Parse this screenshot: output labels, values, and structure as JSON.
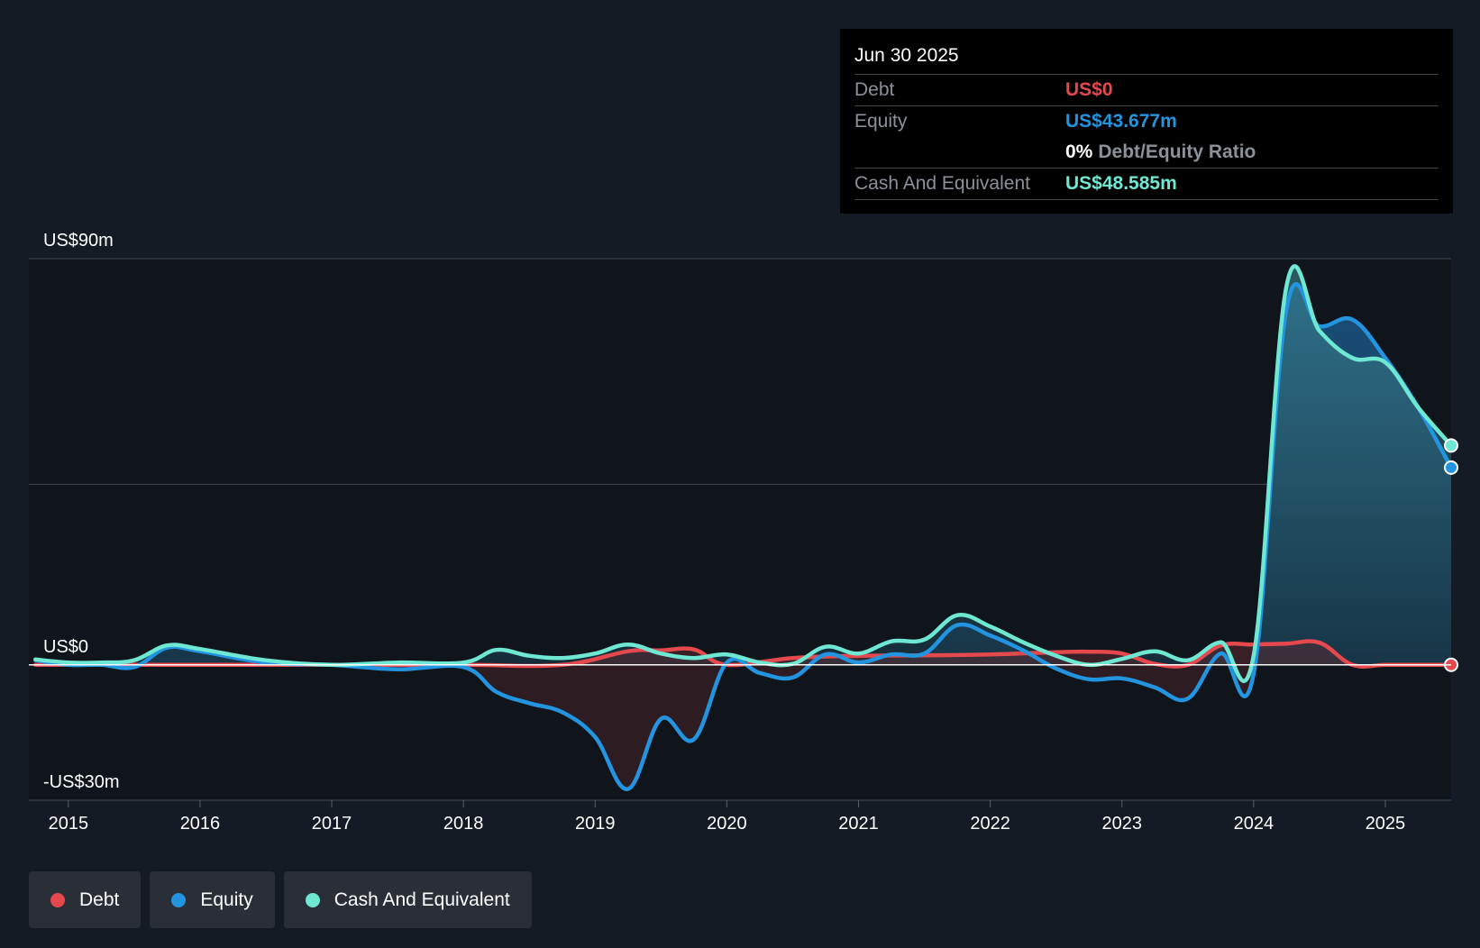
{
  "tooltip": {
    "date": "Jun 30 2025",
    "debt_label": "Debt",
    "debt_value": "US$0",
    "equity_label": "Equity",
    "equity_value": "US$43.677m",
    "ratio_pct": "0%",
    "ratio_label": "Debt/Equity Ratio",
    "cash_label": "Cash And Equivalent",
    "cash_value": "US$48.585m"
  },
  "legend": [
    {
      "label": "Debt",
      "color": "#e5484d"
    },
    {
      "label": "Equity",
      "color": "#2394df"
    },
    {
      "label": "Cash And Equivalent",
      "color": "#6ee7d3"
    }
  ],
  "colors": {
    "debt": "#e5484d",
    "equity": "#2394df",
    "cash": "#6ee7d3",
    "background": "#151b24",
    "plot_area": "#10151c"
  },
  "chart_data": {
    "type": "line",
    "title": "",
    "xlabel": "",
    "ylabel": "",
    "ylim": [
      -30,
      90
    ],
    "xlim": [
      2014.7,
      2025.5
    ],
    "y_tick_labels": [
      {
        "value": 90,
        "label": "US$90m"
      },
      {
        "value": 0,
        "label": "US$0"
      },
      {
        "value": -30,
        "label": "-US$30m"
      }
    ],
    "x_tick_labels": [
      "2015",
      "2016",
      "2017",
      "2018",
      "2019",
      "2020",
      "2021",
      "2022",
      "2023",
      "2024",
      "2025"
    ],
    "x_tick_values": [
      2015,
      2016,
      2017,
      2018,
      2019,
      2020,
      2021,
      2022,
      2023,
      2024,
      2025
    ],
    "series": [
      {
        "name": "Debt",
        "x": [
          2014.75,
          2015.5,
          2016.0,
          2017.0,
          2018.0,
          2018.75,
          2019.25,
          2019.5,
          2019.75,
          2020.0,
          2020.5,
          2021.0,
          2021.5,
          2022.0,
          2022.5,
          2022.75,
          2023.0,
          2023.25,
          2023.5,
          2023.75,
          2024.0,
          2024.25,
          2024.5,
          2024.75,
          2025.0,
          2025.25,
          2025.5
        ],
        "values": [
          0,
          0,
          0,
          0,
          0,
          0,
          3,
          3.2,
          3.4,
          0,
          1.5,
          2,
          2.1,
          2.3,
          2.8,
          2.9,
          2.5,
          0.2,
          0,
          4.3,
          4.5,
          4.7,
          4.9,
          0,
          0,
          0,
          0
        ]
      },
      {
        "name": "Equity",
        "x": [
          2014.75,
          2015.0,
          2015.25,
          2015.5,
          2015.75,
          2016.0,
          2016.5,
          2017.0,
          2017.5,
          2018.0,
          2018.25,
          2018.5,
          2018.75,
          2019.0,
          2019.25,
          2019.5,
          2019.75,
          2020.0,
          2020.25,
          2020.5,
          2020.75,
          2021.0,
          2021.25,
          2021.5,
          2021.75,
          2022.0,
          2022.25,
          2022.5,
          2022.75,
          2023.0,
          2023.25,
          2023.5,
          2023.75,
          2024.0,
          2024.25,
          2024.5,
          2024.75,
          2025.0,
          2025.25,
          2025.5
        ],
        "values": [
          1,
          0,
          0,
          -0.5,
          3.8,
          3,
          0.5,
          0,
          -1,
          -0.5,
          -6,
          -8.5,
          -10.5,
          -16,
          -27.5,
          -12,
          -16.5,
          0.5,
          -1.8,
          -2.8,
          2.3,
          0.5,
          2.3,
          2.5,
          8.8,
          6.5,
          3.2,
          -0.8,
          -3.2,
          -3,
          -5,
          -7.5,
          2.5,
          -2,
          79,
          75,
          76.5,
          68,
          57,
          43.7
        ]
      },
      {
        "name": "Cash And Equivalent",
        "x": [
          2014.75,
          2015.0,
          2015.25,
          2015.5,
          2015.75,
          2016.0,
          2016.5,
          2017.0,
          2017.5,
          2018.0,
          2018.25,
          2018.5,
          2018.75,
          2019.0,
          2019.25,
          2019.5,
          2019.75,
          2020.0,
          2020.25,
          2020.5,
          2020.75,
          2021.0,
          2021.25,
          2021.5,
          2021.75,
          2022.0,
          2022.25,
          2022.5,
          2022.75,
          2023.0,
          2023.25,
          2023.5,
          2023.75,
          2024.0,
          2024.25,
          2024.5,
          2024.75,
          2025.0,
          2025.25,
          2025.5
        ],
        "values": [
          1.2,
          0.5,
          0.5,
          1,
          4.3,
          3.5,
          1,
          0,
          0.5,
          0.5,
          3.3,
          2,
          1.5,
          2.5,
          4.5,
          2.5,
          1.5,
          2.3,
          0.5,
          0.2,
          4,
          2.5,
          5.2,
          5.6,
          11,
          8.5,
          5,
          2,
          0,
          1.3,
          3,
          1,
          5,
          2,
          84,
          74,
          68,
          67,
          57,
          48.6
        ]
      }
    ],
    "end_markers": [
      "Debt",
      "Equity",
      "Cash And Equivalent"
    ]
  }
}
